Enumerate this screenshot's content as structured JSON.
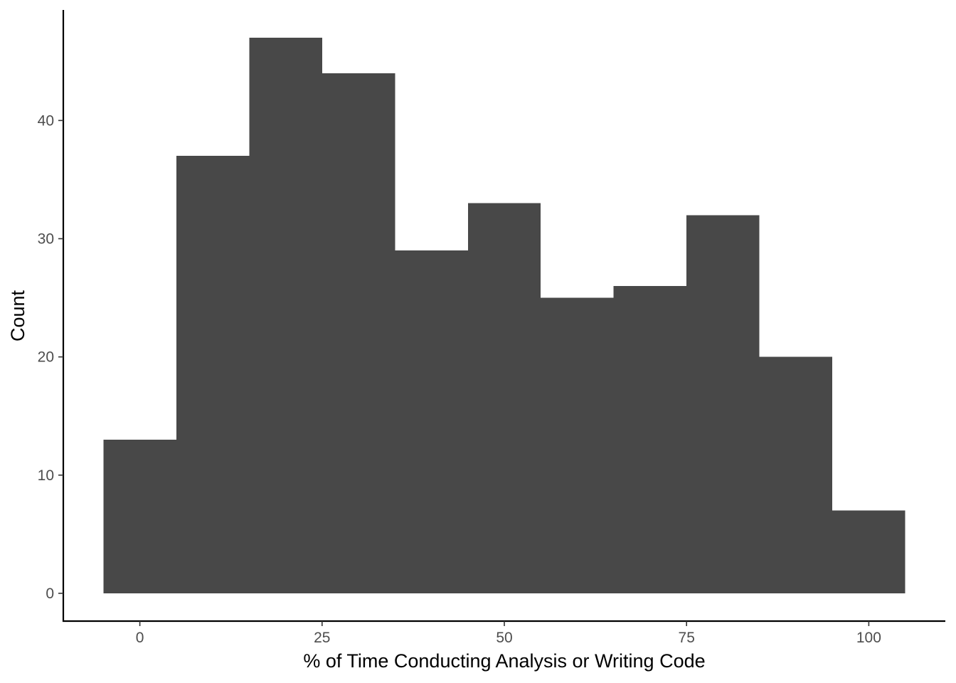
{
  "chart_data": {
    "type": "bar",
    "subtype": "histogram",
    "title": "",
    "xlabel": "% of Time Conducting Analysis or Writing Code",
    "ylabel": "Count",
    "bins": [
      {
        "x_start": -5,
        "x_end": 5,
        "count": 13
      },
      {
        "x_start": 5,
        "x_end": 15,
        "count": 37
      },
      {
        "x_start": 15,
        "x_end": 25,
        "count": 47
      },
      {
        "x_start": 25,
        "x_end": 35,
        "count": 44
      },
      {
        "x_start": 35,
        "x_end": 45,
        "count": 29
      },
      {
        "x_start": 45,
        "x_end": 55,
        "count": 33
      },
      {
        "x_start": 55,
        "x_end": 65,
        "count": 25
      },
      {
        "x_start": 65,
        "x_end": 75,
        "count": 26
      },
      {
        "x_start": 75,
        "x_end": 85,
        "count": 32
      },
      {
        "x_start": 85,
        "x_end": 95,
        "count": 20
      },
      {
        "x_start": 95,
        "x_end": 105,
        "count": 7
      }
    ],
    "x_ticks": [
      0,
      25,
      50,
      75,
      100
    ],
    "x_tick_labels": [
      "0",
      "25",
      "50",
      "75",
      "100"
    ],
    "y_ticks": [
      0,
      10,
      20,
      30,
      40
    ],
    "y_tick_labels": [
      "0",
      "10",
      "20",
      "30",
      "40"
    ],
    "xlim": [
      -10.5,
      110.5
    ],
    "ylim": [
      -2.35,
      49.35
    ],
    "grid": false,
    "legend": "none",
    "bar_color": "#484848",
    "axis_color": "#000000",
    "tick_label_color": "#4d4d4d"
  }
}
